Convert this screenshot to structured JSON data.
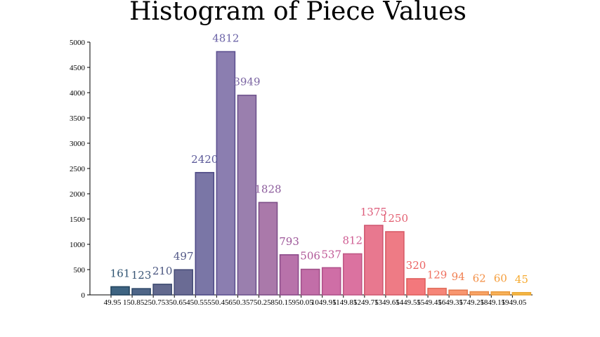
{
  "chart_data": {
    "type": "bar",
    "title": "Histogram of Piece Values",
    "xlabel": "",
    "ylabel": "",
    "ylim": [
      0,
      5000
    ],
    "yticks": [
      0,
      500,
      1000,
      1500,
      2000,
      2500,
      3000,
      3500,
      4000,
      4500,
      5000
    ],
    "grid": false,
    "categories": [
      "49.95",
      "150.85",
      "250.75",
      "350.65",
      "450.55",
      "550.45",
      "650.35",
      "750.25",
      "850.15",
      "950.05",
      "1049.95",
      "1149.85",
      "1249.75",
      "1349.65",
      "1449.55",
      "1549.45",
      "1649.35",
      "1749.25",
      "1849.15",
      "1949.05"
    ],
    "values": [
      161,
      123,
      210,
      497,
      2420,
      4812,
      3949,
      1828,
      793,
      506,
      537,
      812,
      1375,
      1250,
      320,
      129,
      94,
      62,
      60,
      45
    ],
    "colors": [
      "#3e6482",
      "#4f6688",
      "#62698e",
      "#6a6b94",
      "#7a76a6",
      "#8b7eb0",
      "#9a7fae",
      "#aa79aa",
      "#b872aa",
      "#c26ea8",
      "#cf6ea6",
      "#db72a0",
      "#e8788f",
      "#ee7b85",
      "#f3787c",
      "#f68578",
      "#f8966f",
      "#f9a566",
      "#f8b25a",
      "#f6bd4a"
    ],
    "edge_colors": [
      "#22445e",
      "#2f4a6a",
      "#3f4c72",
      "#474d78",
      "#4e4a86",
      "#5e5291",
      "#6e538d",
      "#7e4f88",
      "#8c4a8a",
      "#a0508a",
      "#b0508a",
      "#c05886",
      "#d05a72",
      "#d85c68",
      "#e0605e",
      "#e06e5c",
      "#e47a52",
      "#e88a48",
      "#ea9a3c",
      "#eba632"
    ],
    "label_colors": [
      "#2d5270",
      "#385474",
      "#4a5680",
      "#545a88",
      "#5a5898",
      "#6a62a6",
      "#7a64a2",
      "#8c5c9c",
      "#9c5598",
      "#b05898",
      "#c05896",
      "#cf5c92",
      "#dd5c7a",
      "#e35f70",
      "#eb6262",
      "#ef7060",
      "#f18052",
      "#f39048",
      "#f59e3c",
      "#f6aa30"
    ]
  }
}
